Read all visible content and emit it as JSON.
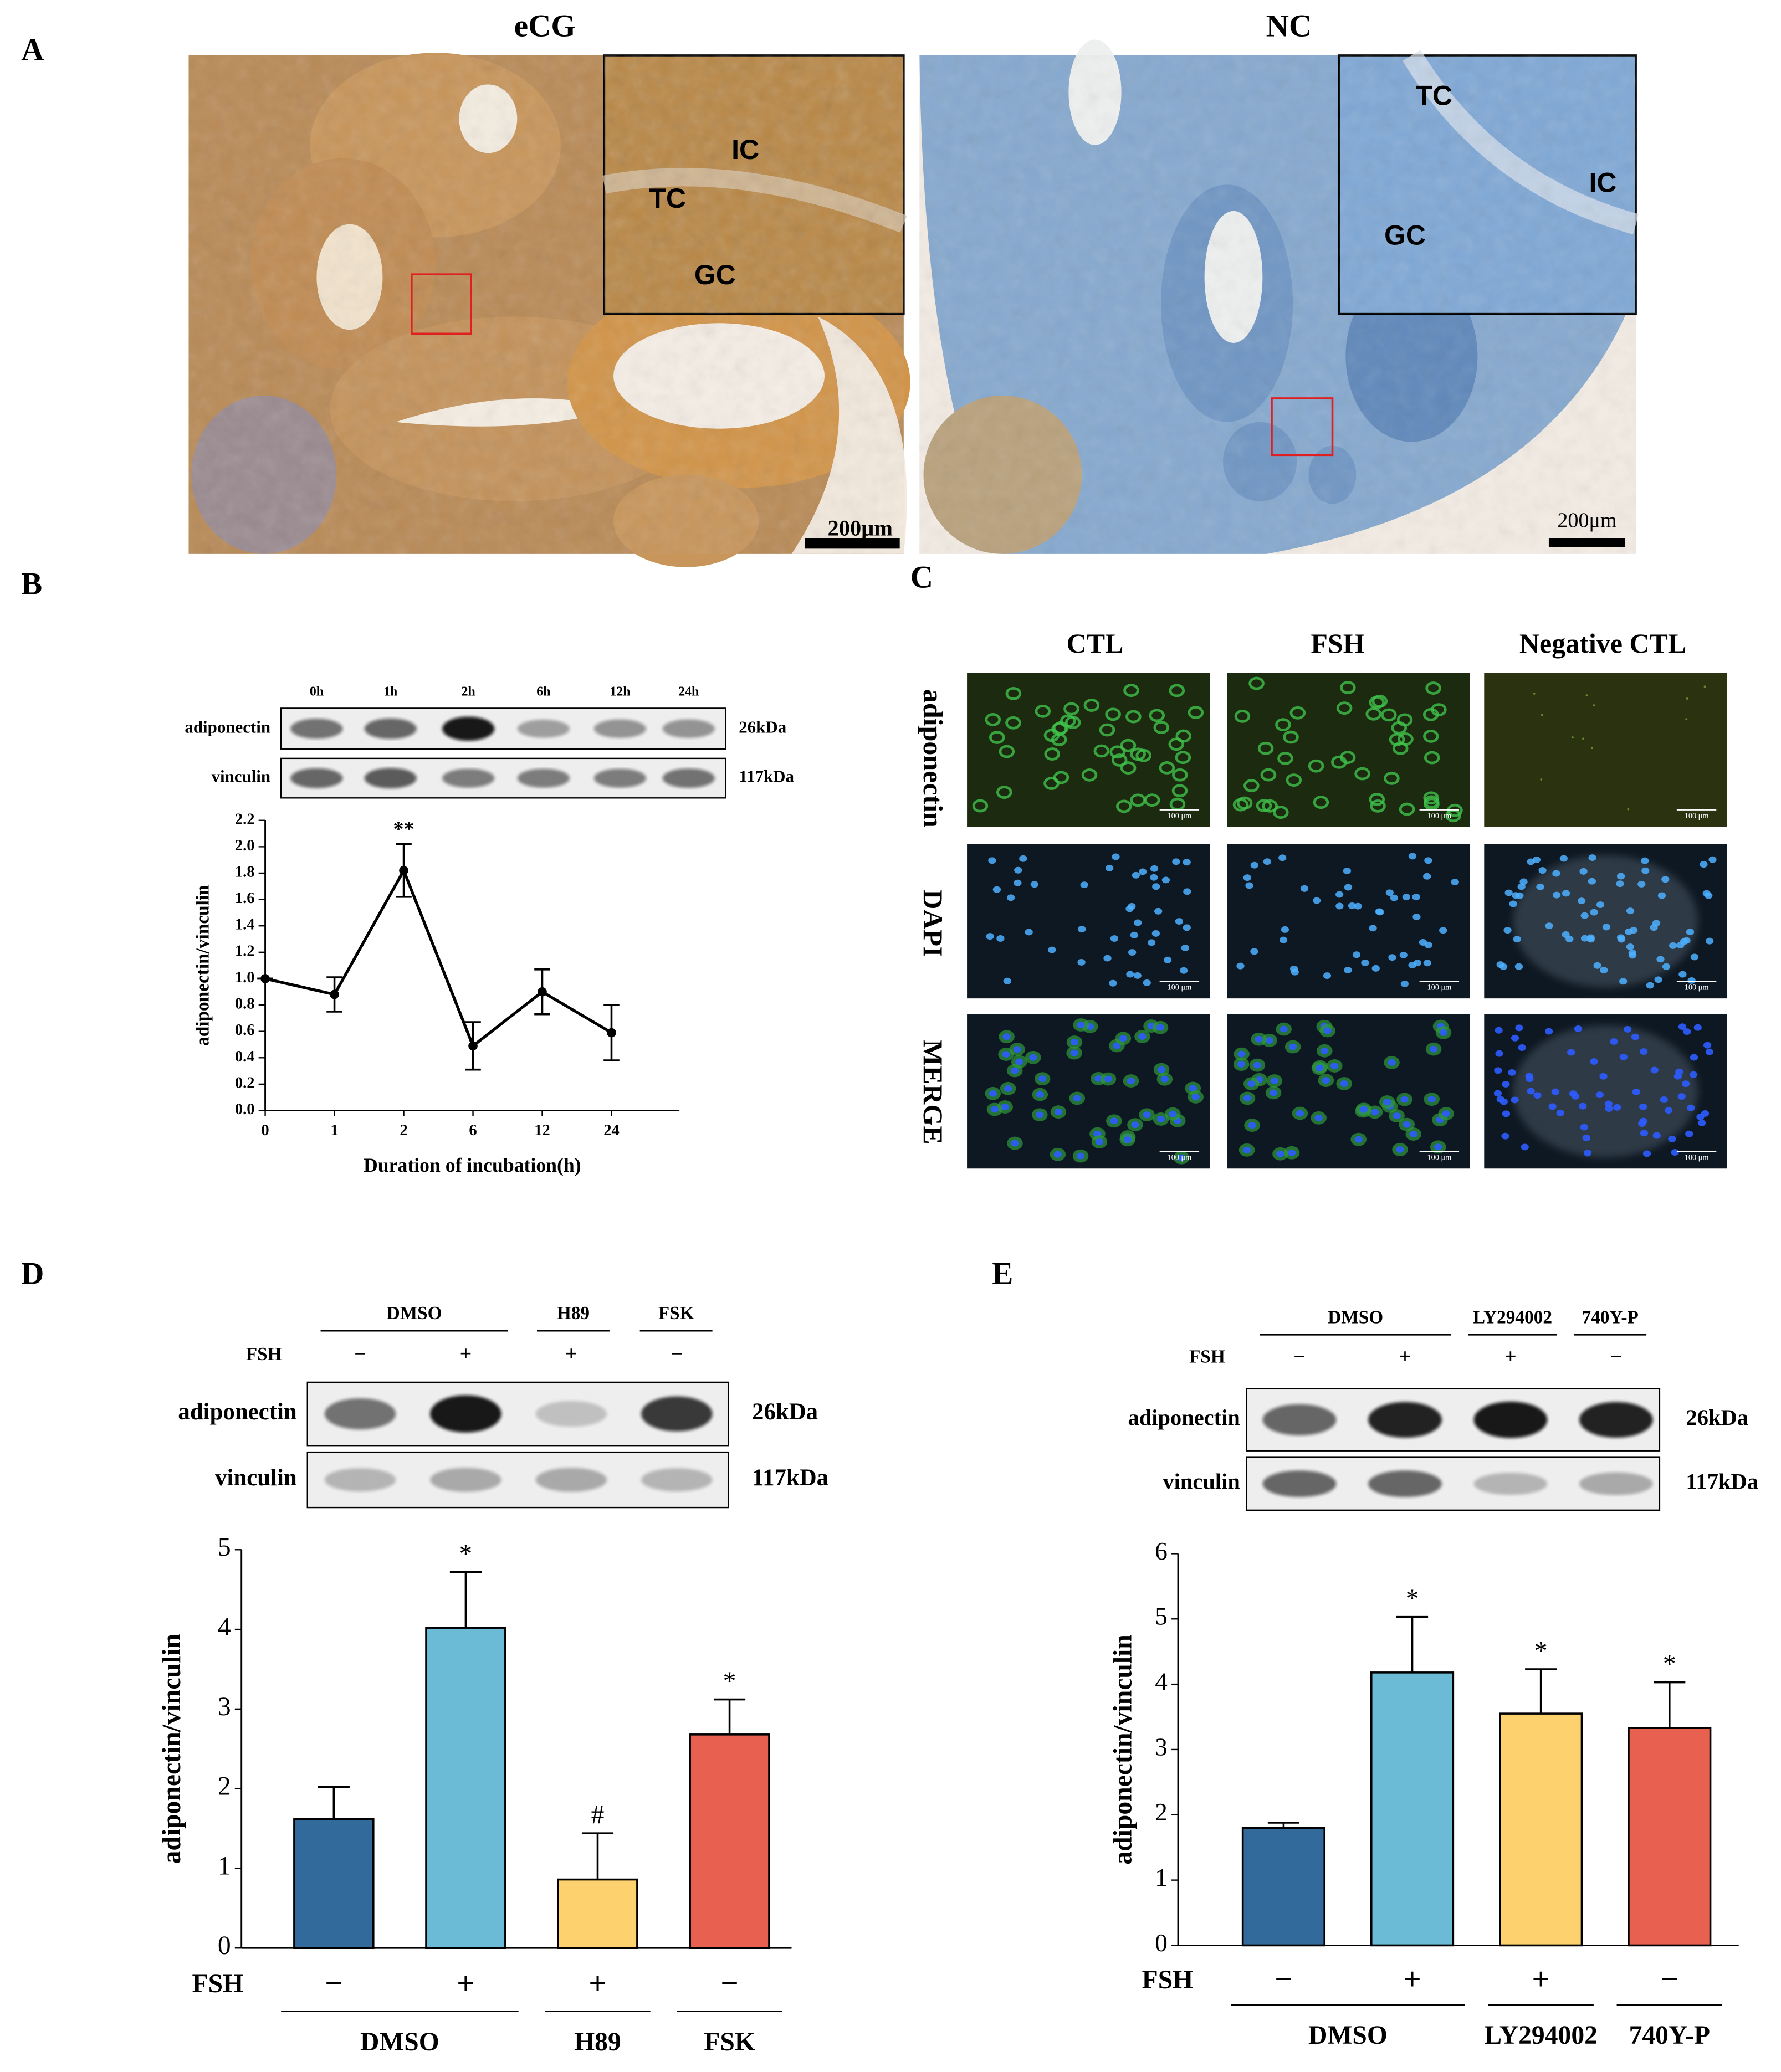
{
  "panel_labels": [
    "A",
    "B",
    "C",
    "D",
    "E"
  ],
  "panel_a": {
    "images": [
      {
        "title": "eCG",
        "inset_labels": [
          "IC",
          "TC",
          "GC"
        ],
        "scale_bar": "200μm"
      },
      {
        "title": "NC",
        "inset_labels": [
          "TC",
          "IC",
          "GC"
        ],
        "scale_bar": "200μm"
      }
    ]
  },
  "panel_c": {
    "columns": [
      "CTL",
      "FSH",
      "Negative CTL"
    ],
    "rows": [
      "adiponectin",
      "DAPI",
      "MERGE"
    ],
    "scale_bar": "100 μm"
  },
  "blots": [
    {
      "lanes": [
        "0h",
        "1h",
        "2h",
        "6h",
        "12h",
        "24h"
      ],
      "rows": [
        "adiponectin",
        "vinculin"
      ],
      "sizes": [
        "26kDa",
        "117kDa"
      ]
    },
    {
      "groups": [
        "DMSO",
        "H89",
        "FSK"
      ],
      "treatment_label": "FSH",
      "treatment": [
        "−",
        "+",
        "+",
        "−"
      ],
      "rows": [
        "adiponectin",
        "vinculin"
      ],
      "sizes": [
        "26kDa",
        "117kDa"
      ]
    },
    {
      "groups": [
        "DMSO",
        "LY294002",
        "740Y-P"
      ],
      "treatment_label": "FSH",
      "treatment": [
        "−",
        "+",
        "+",
        "−"
      ],
      "rows": [
        "adiponectin",
        "vinculin"
      ],
      "sizes": [
        "26kDa",
        "117kDa"
      ]
    }
  ],
  "chart_data": [
    {
      "type": "line",
      "x_label": "Duration of incubation(h)",
      "y_label": "adiponectin/vinculin",
      "categories": [
        "0",
        "1",
        "2",
        "6",
        "12",
        "24"
      ],
      "values": [
        1.0,
        0.88,
        1.82,
        0.49,
        0.9,
        0.59
      ],
      "errors": [
        0,
        0.13,
        0.2,
        0.18,
        0.17,
        0.21
      ],
      "value_annotations": [
        null,
        null,
        "**",
        null,
        null,
        null
      ],
      "color": "#000000",
      "ylim": [
        0,
        2.2
      ],
      "yticks": [
        {
          "value": 0,
          "label": "0.0"
        },
        0.2,
        0.4,
        0.6,
        0.8,
        {
          "value": 1,
          "label": "1.0"
        },
        1.2,
        1.4,
        1.6,
        1.8,
        {
          "value": 2,
          "label": "2.0"
        },
        2.2
      ]
    },
    {
      "type": "bar",
      "y_label": "adiponectin/vinculin",
      "x_row_label": "FSH",
      "categories": [
        "−",
        "+",
        "+",
        "−"
      ],
      "groups": [
        "DMSO",
        "H89",
        "FSK"
      ],
      "values": [
        1.62,
        4.02,
        0.86,
        2.68
      ],
      "errors": [
        0.4,
        0.7,
        0.58,
        0.44
      ],
      "value_annotations": [
        null,
        "*",
        "#",
        "*"
      ],
      "colors": [
        "#336a9c",
        "#6bbad6",
        "#fdd26e",
        "#e8604f"
      ],
      "ylim": [
        0,
        5
      ],
      "yticks": [
        0,
        1,
        2,
        3,
        4,
        5
      ]
    },
    {
      "type": "bar",
      "y_label": "adiponectin/vinculin",
      "x_row_label": "FSH",
      "categories": [
        "−",
        "+",
        "+",
        "−"
      ],
      "groups": [
        "DMSO",
        "LY294002",
        "740Y-P"
      ],
      "values": [
        1.8,
        4.18,
        3.55,
        3.33
      ],
      "errors": [
        0.08,
        0.85,
        0.68,
        0.7
      ],
      "value_annotations": [
        null,
        "*",
        "*",
        "*"
      ],
      "colors": [
        "#336a9c",
        "#6bbad6",
        "#fdd26e",
        "#e8604f"
      ],
      "ylim": [
        0,
        6
      ],
      "yticks": [
        0,
        1,
        2,
        3,
        4,
        5,
        6
      ]
    }
  ]
}
